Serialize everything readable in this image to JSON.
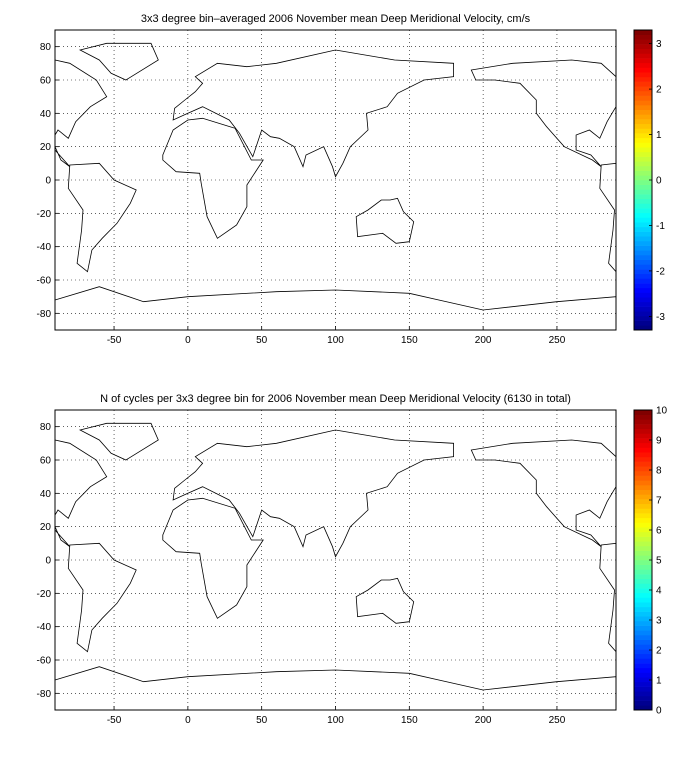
{
  "chart_data": [
    {
      "type": "heatmap",
      "title": "3x3 degree bin–averaged 2006 November mean Deep Meridional Velocity, cm/s",
      "x_ticks": [
        -50,
        0,
        50,
        100,
        150,
        200,
        250
      ],
      "y_ticks": [
        80,
        60,
        40,
        20,
        0,
        -20,
        -40,
        -60,
        -80
      ],
      "xlim": [
        -90,
        290
      ],
      "ylim": [
        -90,
        90
      ],
      "colorbar": {
        "min": -3.3,
        "max": 3.3,
        "ticks": [
          3,
          2,
          1,
          0,
          -1,
          -2,
          -3
        ],
        "colormap": "jet"
      },
      "grid": true,
      "bin_size_deg": 3
    },
    {
      "type": "heatmap",
      "title": "N of cycles per 3x3 degree bin for 2006 November mean Deep Meridional Velocity (6130 in total)",
      "x_ticks": [
        -50,
        0,
        50,
        100,
        150,
        200,
        250
      ],
      "y_ticks": [
        80,
        60,
        40,
        20,
        0,
        -20,
        -40,
        -60,
        -80
      ],
      "xlim": [
        -90,
        290
      ],
      "ylim": [
        -90,
        90
      ],
      "colorbar": {
        "min": 0,
        "max": 10,
        "ticks": [
          10,
          9,
          8,
          7,
          6,
          5,
          4,
          3,
          2,
          1,
          0
        ],
        "colormap": "jet"
      },
      "grid": true,
      "bin_size_deg": 3,
      "total_cycles": 6130
    }
  ]
}
